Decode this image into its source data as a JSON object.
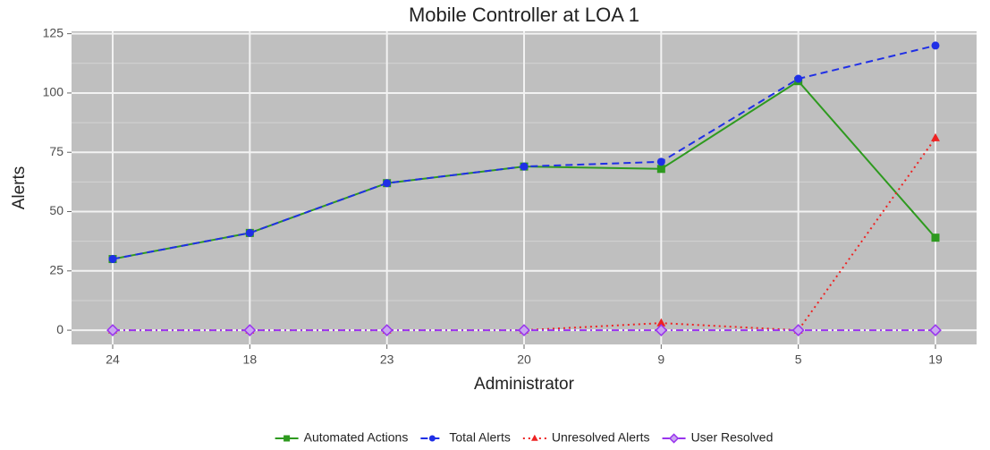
{
  "chart_data": {
    "type": "line",
    "title": "Mobile Controller at LOA 1",
    "x_label": "Administrator",
    "y_label": "Alerts",
    "categories": [
      "24",
      "18",
      "23",
      "20",
      "9",
      "5",
      "19"
    ],
    "series": [
      {
        "name": "Automated Actions",
        "color": "#2e9a1f",
        "dash": "solid",
        "marker": "square",
        "values": [
          30,
          41,
          62,
          69,
          68,
          105,
          39
        ]
      },
      {
        "name": "Total Alerts",
        "color": "#1f2fe6",
        "dash": "dashed",
        "marker": "circle",
        "values": [
          30,
          41,
          62,
          69,
          71,
          106,
          120
        ]
      },
      {
        "name": "Unresolved Alerts",
        "color": "#ee2222",
        "dash": "dotted",
        "marker": "triangle",
        "values": [
          0,
          0,
          0,
          0,
          3,
          0,
          81
        ]
      },
      {
        "name": "User Resolved",
        "color": "#9933ee",
        "dash": "dashdot",
        "marker": "diamond",
        "values": [
          0,
          0,
          0,
          0,
          0,
          0,
          0
        ]
      }
    ],
    "ylim": [
      -6,
      126
    ],
    "yticks": [
      0,
      25,
      50,
      75,
      100,
      125
    ],
    "grid": true,
    "legend": "bottom"
  }
}
